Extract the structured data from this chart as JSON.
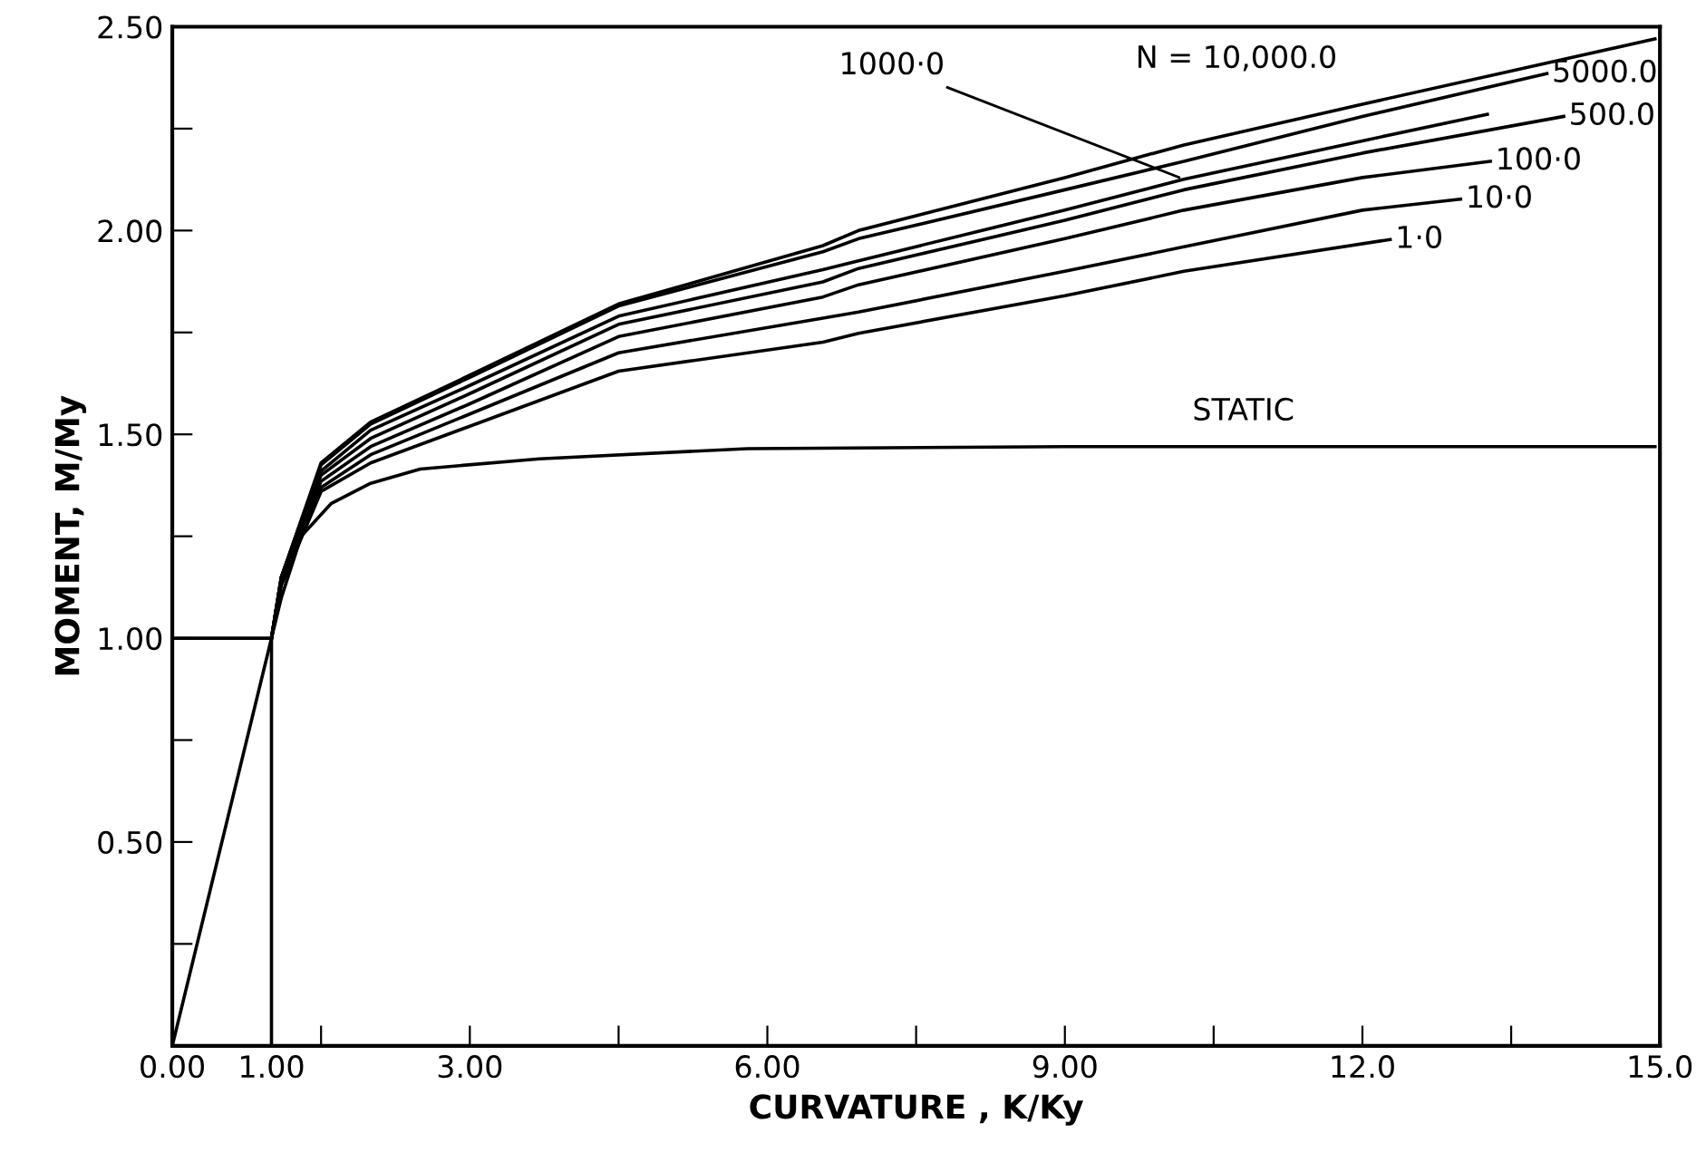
{
  "chart_data": {
    "type": "line",
    "xlabel": "CURVATURE , K/Ky",
    "ylabel": "MOMENT, M/My",
    "xlim": [
      0,
      15
    ],
    "ylim": [
      0,
      2.5
    ],
    "xticks": [
      {
        "value": 0,
        "label": "0.00"
      },
      {
        "value": 1,
        "label": "1.00"
      },
      {
        "value": 1.5,
        "label": null
      },
      {
        "value": 3,
        "label": "3.00"
      },
      {
        "value": 4.5,
        "label": null
      },
      {
        "value": 6,
        "label": "6.00"
      },
      {
        "value": 7.5,
        "label": null
      },
      {
        "value": 9,
        "label": "9.00"
      },
      {
        "value": 10.5,
        "label": null
      },
      {
        "value": 12,
        "label": "12.0"
      },
      {
        "value": 13.5,
        "label": null
      },
      {
        "value": 15,
        "label": "15.0"
      }
    ],
    "yticks": [
      {
        "value": 0.25,
        "label": null
      },
      {
        "value": 0.5,
        "label": "0.50"
      },
      {
        "value": 0.75,
        "label": null
      },
      {
        "value": 1,
        "label": "1.00"
      },
      {
        "value": 1.25,
        "label": null
      },
      {
        "value": 1.5,
        "label": "1.50"
      },
      {
        "value": 1.75,
        "label": null
      },
      {
        "value": 2,
        "label": "2.00"
      },
      {
        "value": 2.25,
        "label": null
      },
      {
        "value": 2.5,
        "label": "2.50"
      }
    ],
    "grid": false,
    "legend": false,
    "marker": "none",
    "line_style": "solid",
    "series": [
      {
        "color": "#000000",
        "x": [
          1,
          1,
          0
        ],
        "values": [
          0,
          1,
          1
        ]
      },
      {
        "color": "#000000",
        "x": [
          0,
          1,
          1.1,
          1.3,
          1.6,
          2,
          2.5,
          3.7,
          5.8,
          9,
          12,
          14.95
        ],
        "values": [
          0,
          1,
          1.1,
          1.25,
          1.33,
          1.38,
          1.415,
          1.44,
          1.465,
          1.47,
          1.47,
          1.47
        ]
      },
      {
        "color": "#000000",
        "x": [
          1,
          1.1,
          1.5,
          2,
          3,
          4.5,
          6.56,
          6.92,
          9,
          10.2,
          12,
          14.95
        ],
        "values": [
          1,
          1.15,
          1.43,
          1.53,
          1.645,
          1.82,
          1.963,
          2.0,
          2.13,
          2.21,
          2.31,
          2.47
        ]
      },
      {
        "name": "5000.0",
        "color": "#000000",
        "x": [
          1,
          1.1,
          1.5,
          2,
          3,
          4.5,
          6.56,
          6.92,
          9,
          10.2,
          12,
          13.86
        ],
        "values": [
          1,
          1.15,
          1.425,
          1.525,
          1.64,
          1.815,
          1.948,
          1.98,
          2.1,
          2.17,
          2.28,
          2.385
        ]
      },
      {
        "color": "#000000",
        "x": [
          1,
          1.1,
          1.5,
          2,
          3,
          4.5,
          6.56,
          6.92,
          9,
          10.2,
          12,
          13.26
        ],
        "values": [
          1,
          1.15,
          1.41,
          1.51,
          1.62,
          1.79,
          1.904,
          1.926,
          2.05,
          2.126,
          2.22,
          2.285
        ]
      },
      {
        "name": "500.0",
        "color": "#000000",
        "x": [
          1,
          1.1,
          1.5,
          2,
          3,
          4.5,
          6.56,
          6.92,
          9,
          10.2,
          12,
          14.03
        ],
        "values": [
          1,
          1.15,
          1.4,
          1.49,
          1.6,
          1.77,
          1.874,
          1.907,
          2.025,
          2.1,
          2.19,
          2.28
        ]
      },
      {
        "name": "100·0",
        "color": "#000000",
        "x": [
          1,
          1.1,
          1.5,
          2,
          3,
          4.5,
          6.56,
          6.92,
          9,
          10.2,
          12,
          13.29
        ],
        "values": [
          1,
          1.14,
          1.385,
          1.47,
          1.575,
          1.74,
          1.837,
          1.867,
          1.98,
          2.05,
          2.13,
          2.17
        ]
      },
      {
        "name": "10·0",
        "color": "#000000",
        "x": [
          1,
          1.1,
          1.5,
          2,
          3,
          4.5,
          6.56,
          6.92,
          9,
          10.2,
          12,
          12.99
        ],
        "values": [
          1,
          1.14,
          1.37,
          1.45,
          1.55,
          1.7,
          1.785,
          1.8,
          1.9,
          1.96,
          2.05,
          2.077
        ]
      },
      {
        "name": "1·0",
        "color": "#000000",
        "x": [
          1,
          1.1,
          1.5,
          2,
          3,
          4.5,
          6.56,
          6.92,
          9,
          10.2,
          12.28
        ],
        "values": [
          1,
          1.13,
          1.36,
          1.43,
          1.52,
          1.655,
          1.726,
          1.748,
          1.84,
          1.9,
          1.978
        ]
      }
    ],
    "annotations": [
      {
        "text": "N = 10,000.0",
        "x": 12,
        "y": 2.31
      },
      {
        "text": "1000·0",
        "x": 10.2,
        "y": 2.126
      },
      {
        "text": "STATIC",
        "x": 10.8,
        "y": 1.47
      }
    ]
  }
}
